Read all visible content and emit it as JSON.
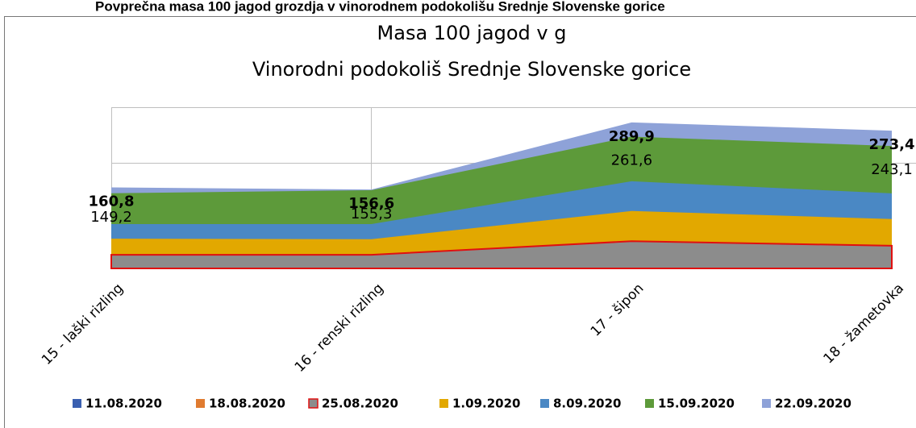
{
  "header": {
    "title": "Povprečna masa 100 jagod grozdja v vinorodnem podokolišu Srednje Slovenske gorice"
  },
  "chart_data": {
    "type": "area",
    "title": "Masa 100 jagod v g",
    "subtitle": "Vinorodni podokoliš Srednje Slovenske gorice",
    "categories": [
      "15 - laški rizling",
      "16 - renski rizling",
      "17 - šipon",
      "18 - žametovka"
    ],
    "ylim": [
      0,
      320
    ],
    "series": [
      {
        "name": "11.08.2020",
        "color": "#3a5fb0",
        "values": [
          null,
          null,
          null,
          null
        ]
      },
      {
        "name": "18.08.2020",
        "color": "#e07b30",
        "values": [
          null,
          null,
          null,
          null
        ]
      },
      {
        "name": "25.08.2020",
        "color": "#8c8c8c",
        "border": "#e01010",
        "values": [
          27,
          27,
          54,
          45
        ]
      },
      {
        "name": "1.09.2020",
        "color": "#e2a800",
        "values": [
          59,
          58,
          114,
          98
        ]
      },
      {
        "name": "8.09.2020",
        "color": "#4a88c4",
        "values": [
          88,
          88,
          173,
          149
        ]
      },
      {
        "name": "15.09.2020",
        "color": "#5d9a3a",
        "values": [
          149.2,
          155.3,
          261.6,
          243.1
        ],
        "value_labels": [
          "149,2",
          "155,3",
          "261,6",
          "243,1"
        ]
      },
      {
        "name": "22.09.2020",
        "color": "#8ea2d8",
        "values": [
          160.8,
          156.6,
          289.9,
          273.4
        ],
        "value_labels": [
          "160,8",
          "156,6",
          "289,9",
          "273,4"
        ],
        "bold_labels": true
      }
    ]
  }
}
